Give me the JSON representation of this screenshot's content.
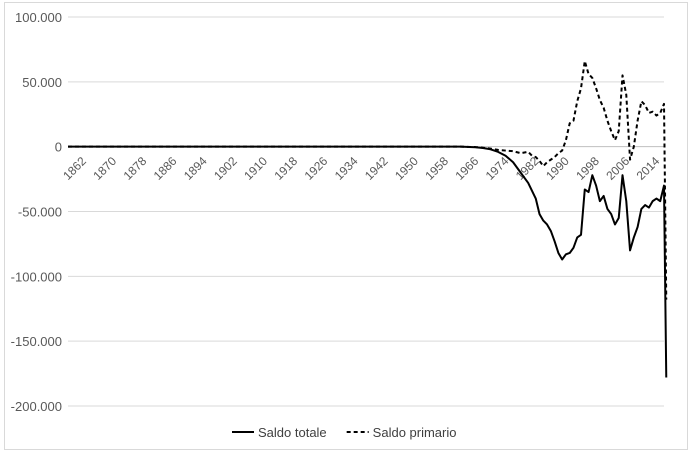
{
  "chart_data": {
    "type": "line",
    "title": "",
    "xlabel": "",
    "ylabel": "",
    "ylim": [
      -200000,
      100000
    ],
    "xlim": [
      1862,
      2020
    ],
    "yticks": [
      100000,
      50000,
      0,
      -50000,
      -100000,
      -150000,
      -200000
    ],
    "ytick_labels": [
      "100.000",
      "50.000",
      "0",
      "-50.000",
      "-100.000",
      "-150.000",
      "-200.000"
    ],
    "xticks": [
      1862,
      1870,
      1878,
      1886,
      1894,
      1902,
      1910,
      1918,
      1926,
      1934,
      1942,
      1950,
      1958,
      1966,
      1974,
      1982,
      1990,
      1998,
      2006,
      2014
    ],
    "xtick_labels": [
      "1862",
      "1870",
      "1878",
      "1886",
      "1894",
      "1902",
      "1910",
      "1918",
      "1926",
      "1934",
      "1942",
      "1950",
      "1958",
      "1966",
      "1974",
      "1982",
      "1990",
      "1998",
      "2006",
      "2014"
    ],
    "grid": "horizontal",
    "legend_position": "bottom",
    "series": [
      {
        "name": "Saldo totale",
        "style": "solid",
        "color": "#000000",
        "points": [
          [
            1862,
            0
          ],
          [
            1966,
            0
          ],
          [
            1970,
            -500
          ],
          [
            1972,
            -1000
          ],
          [
            1974,
            -2000
          ],
          [
            1976,
            -4000
          ],
          [
            1978,
            -7000
          ],
          [
            1980,
            -12000
          ],
          [
            1982,
            -20000
          ],
          [
            1984,
            -28000
          ],
          [
            1986,
            -40000
          ],
          [
            1987,
            -52000
          ],
          [
            1988,
            -57000
          ],
          [
            1989,
            -60000
          ],
          [
            1990,
            -65000
          ],
          [
            1991,
            -73000
          ],
          [
            1992,
            -82000
          ],
          [
            1993,
            -87000
          ],
          [
            1994,
            -83000
          ],
          [
            1995,
            -82000
          ],
          [
            1996,
            -78000
          ],
          [
            1997,
            -70000
          ],
          [
            1998,
            -68000
          ],
          [
            1999,
            -33000
          ],
          [
            2000,
            -35000
          ],
          [
            2001,
            -22000
          ],
          [
            2002,
            -30000
          ],
          [
            2003,
            -42000
          ],
          [
            2004,
            -38000
          ],
          [
            2005,
            -48000
          ],
          [
            2006,
            -52000
          ],
          [
            2007,
            -60000
          ],
          [
            2008,
            -55000
          ],
          [
            2009,
            -22000
          ],
          [
            2010,
            -42000
          ],
          [
            2011,
            -80000
          ],
          [
            2012,
            -70000
          ],
          [
            2013,
            -62000
          ],
          [
            2014,
            -48000
          ],
          [
            2015,
            -45000
          ],
          [
            2016,
            -47000
          ],
          [
            2017,
            -42000
          ],
          [
            2018,
            -40000
          ],
          [
            2019,
            -42000
          ],
          [
            2020,
            -30000
          ],
          [
            2020.6,
            -178000
          ]
        ]
      },
      {
        "name": "Saldo primario",
        "style": "dashed",
        "color": "#000000",
        "points": [
          [
            1862,
            0
          ],
          [
            1966,
            0
          ],
          [
            1970,
            -300
          ],
          [
            1972,
            -800
          ],
          [
            1974,
            -1500
          ],
          [
            1976,
            -2500
          ],
          [
            1978,
            -3000
          ],
          [
            1980,
            -3500
          ],
          [
            1982,
            -5000
          ],
          [
            1984,
            -4000
          ],
          [
            1985,
            -7000
          ],
          [
            1986,
            -8000
          ],
          [
            1987,
            -11000
          ],
          [
            1988,
            -15000
          ],
          [
            1989,
            -12000
          ],
          [
            1990,
            -10000
          ],
          [
            1991,
            -8000
          ],
          [
            1992,
            -5000
          ],
          [
            1993,
            -3000
          ],
          [
            1994,
            5000
          ],
          [
            1995,
            18000
          ],
          [
            1996,
            20000
          ],
          [
            1997,
            35000
          ],
          [
            1998,
            45000
          ],
          [
            1999,
            66000
          ],
          [
            2000,
            56000
          ],
          [
            2001,
            53000
          ],
          [
            2002,
            45000
          ],
          [
            2003,
            36000
          ],
          [
            2004,
            30000
          ],
          [
            2005,
            20000
          ],
          [
            2006,
            12000
          ],
          [
            2007,
            5000
          ],
          [
            2008,
            12000
          ],
          [
            2009,
            55000
          ],
          [
            2010,
            40000
          ],
          [
            2011,
            -10000
          ],
          [
            2012,
            0
          ],
          [
            2013,
            20000
          ],
          [
            2014,
            35000
          ],
          [
            2015,
            32000
          ],
          [
            2016,
            26000
          ],
          [
            2017,
            27000
          ],
          [
            2018,
            24000
          ],
          [
            2019,
            26000
          ],
          [
            2020,
            33000
          ],
          [
            2020.6,
            -118000
          ]
        ]
      }
    ]
  }
}
